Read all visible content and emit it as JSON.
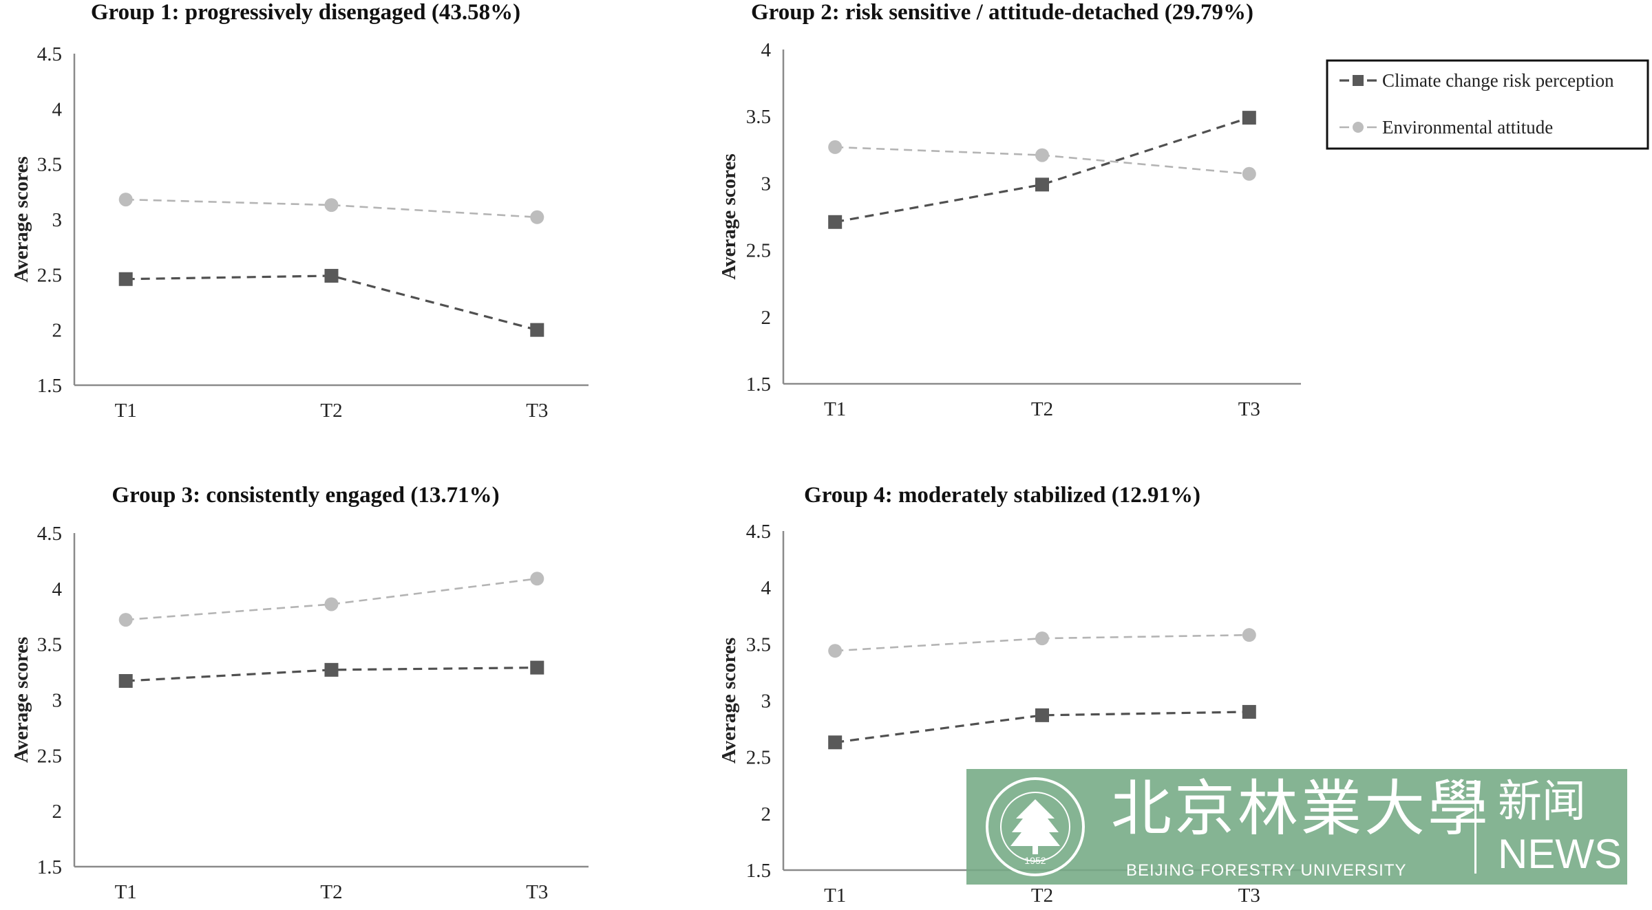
{
  "chart_data": [
    {
      "type": "line",
      "title": "Group 1: progressively disengaged (43.58%)",
      "ylabel": "Average scores",
      "xlabel": "",
      "categories": [
        "T1",
        "T2",
        "T3"
      ],
      "ylim": [
        1.5,
        4.5
      ],
      "yticks": [
        "1.5",
        "2",
        "2.5",
        "3",
        "3.5",
        "4",
        "4.5"
      ],
      "series": [
        {
          "name": "Climate change risk perception",
          "values": [
            2.46,
            2.49,
            2.0
          ]
        },
        {
          "name": "Environmental attitude",
          "values": [
            3.18,
            3.13,
            3.02
          ]
        }
      ]
    },
    {
      "type": "line",
      "title": "Group 2: risk sensitive / attitude-detached (29.79%)",
      "ylabel": "Average scores",
      "xlabel": "",
      "categories": [
        "T1",
        "T2",
        "T3"
      ],
      "ylim": [
        1.5,
        4
      ],
      "yticks": [
        "1.5",
        "2",
        "2.5",
        "3",
        "3.5",
        "4"
      ],
      "series": [
        {
          "name": "Climate change risk perception",
          "values": [
            2.71,
            2.99,
            3.49
          ]
        },
        {
          "name": "Environmental attitude",
          "values": [
            3.27,
            3.21,
            3.07
          ]
        }
      ]
    },
    {
      "type": "line",
      "title": "Group 3: consistently engaged (13.71%)",
      "ylabel": "Average scores",
      "xlabel": "",
      "categories": [
        "T1",
        "T2",
        "T3"
      ],
      "ylim": [
        1.5,
        4.5
      ],
      "yticks": [
        "1.5",
        "2",
        "2.5",
        "3",
        "3.5",
        "4",
        "4.5"
      ],
      "series": [
        {
          "name": "Climate change risk perception",
          "values": [
            3.17,
            3.27,
            3.29
          ]
        },
        {
          "name": "Environmental attitude",
          "values": [
            3.72,
            3.86,
            4.09
          ]
        }
      ]
    },
    {
      "type": "line",
      "title": "Group 4: moderately stabilized (12.91%)",
      "ylabel": "Average scores",
      "xlabel": "",
      "categories": [
        "T1",
        "T2",
        "T3"
      ],
      "ylim": [
        1.5,
        4.5
      ],
      "yticks": [
        "1.5",
        "2",
        "2.5",
        "3",
        "3.5",
        "4",
        "4.5"
      ],
      "series": [
        {
          "name": "Climate change risk perception",
          "values": [
            2.63,
            2.87,
            2.9
          ]
        },
        {
          "name": "Environmental attitude",
          "values": [
            3.44,
            3.55,
            3.58
          ]
        }
      ]
    }
  ],
  "legend": {
    "placement": "top-right",
    "items": [
      {
        "label": "Climate change risk perception",
        "color": "#595959",
        "marker": "square"
      },
      {
        "label": "Environmental attitude",
        "color": "#bdbdbd",
        "marker": "circle"
      }
    ]
  },
  "watermark": {
    "name_cn": "北京林業大學",
    "name_en": "BEIJING FORESTRY UNIVERSITY",
    "news_cn": "新闻",
    "news_en": "NEWS",
    "seal_year": "1952",
    "background_color": "#74aa84"
  }
}
